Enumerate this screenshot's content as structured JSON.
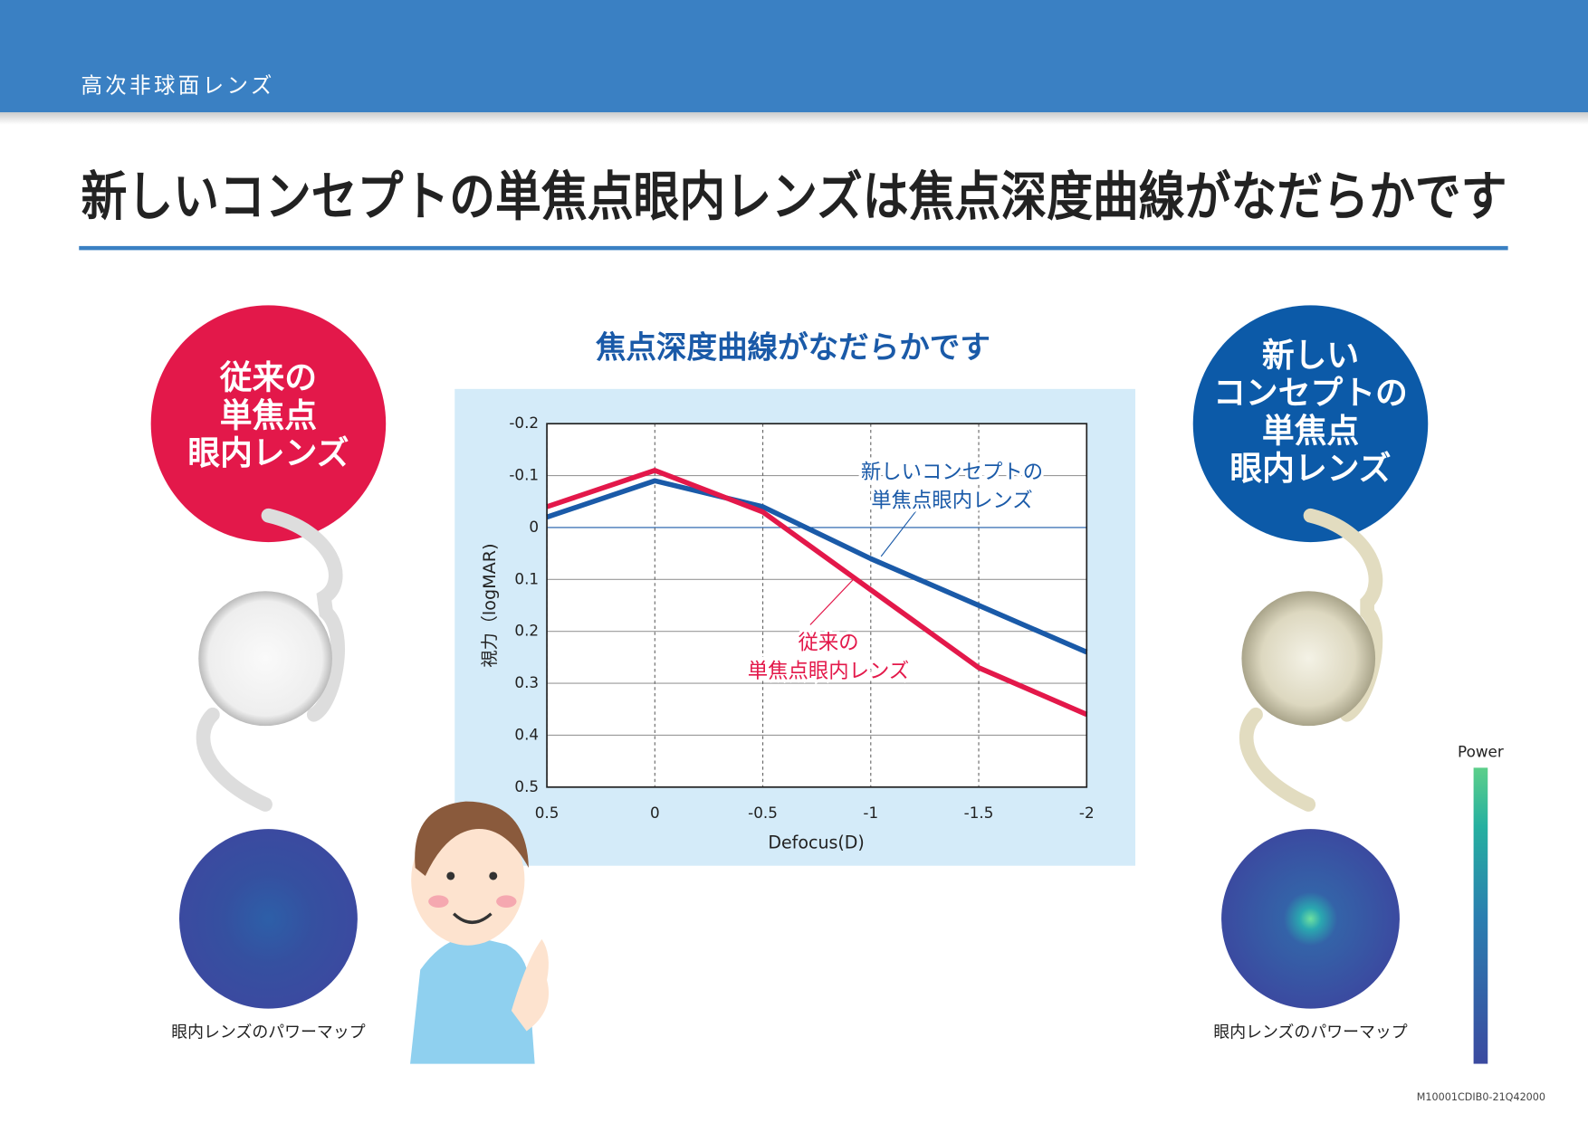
{
  "header": {
    "section": "高次非球面レンズ",
    "title": "新しいコンセプトの単焦点眼内レンズは焦点深度曲線がなだらかです"
  },
  "left_panel": {
    "label": [
      "従来の",
      "単焦点",
      "眼内レンズ"
    ],
    "caption": "眼内レンズのパワーマップ"
  },
  "right_panel": {
    "label": [
      "新しい",
      "コンセプトの",
      "単焦点",
      "眼内レンズ"
    ],
    "caption": "眼内レンズのパワーマップ",
    "colorbar_label": "Power"
  },
  "footer": {
    "code": "M10001CDIB0-21Q42000"
  },
  "chart_data": {
    "type": "line",
    "title": "焦点深度曲線がなだらかです",
    "x_label": "Defocus(D)",
    "y_label": "視力（logMAR)",
    "x": [
      0.5,
      0,
      -0.5,
      -1,
      -1.5,
      -2
    ],
    "xlim": [
      0.5,
      -2
    ],
    "xticks": [
      0.5,
      0,
      -0.5,
      -1,
      -1.5,
      -2
    ],
    "ylim": [
      -0.2,
      0.5
    ],
    "yticks": [
      -0.2,
      -0.1,
      0,
      0.1,
      0.2,
      0.3,
      0.4,
      0.5
    ],
    "grid": true,
    "series": [
      {
        "color": "#1a5aa8",
        "values": [
          -0.02,
          -0.09,
          -0.04,
          0.06,
          0.15,
          0.24
        ]
      },
      {
        "color": "#e3184a",
        "values": [
          -0.04,
          -0.11,
          -0.03,
          0.12,
          0.27,
          0.36
        ]
      }
    ],
    "annotations": [
      {
        "text": [
          "新しいコンセプトの",
          "単焦点眼内レンズ"
        ],
        "color": "#1a5aa8"
      },
      {
        "text": [
          "従来の",
          "単焦点眼内レンズ"
        ],
        "color": "#e3184a"
      }
    ]
  }
}
